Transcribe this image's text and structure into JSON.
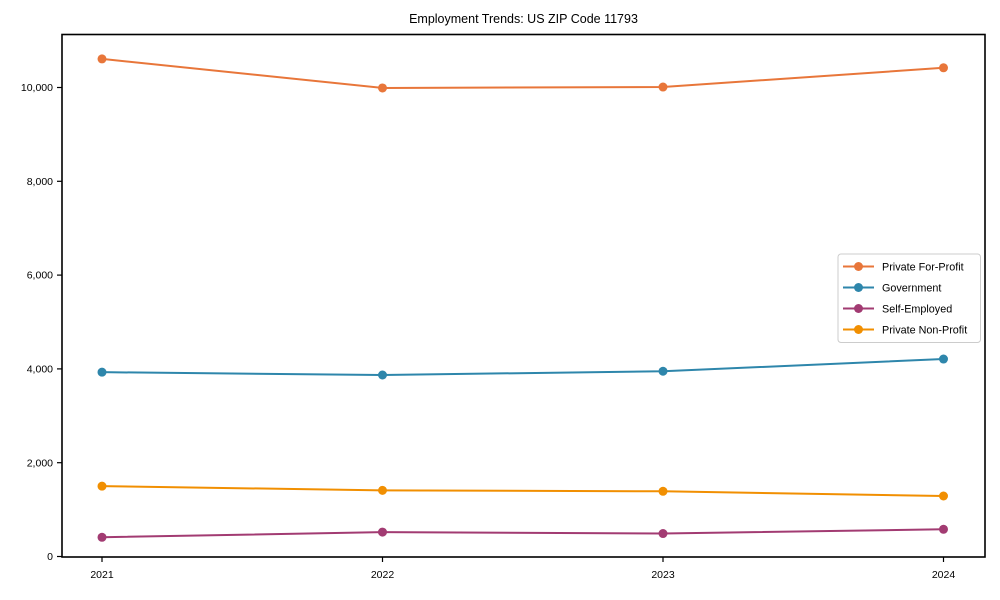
{
  "figure": {
    "background_color": "#ffffff",
    "frame_color": "#000000"
  },
  "chart_data": {
    "type": "line",
    "title": "Employment Trends: US ZIP Code 11793",
    "xlabel": "",
    "ylabel": "",
    "categories": [
      "2021",
      "2022",
      "2023",
      "2024"
    ],
    "series": [
      {
        "name": "Private For-Profit",
        "color": "#E8763A",
        "values": [
          10610,
          9990,
          10010,
          10420
        ]
      },
      {
        "name": "Government",
        "color": "#2E86AB",
        "values": [
          3930,
          3870,
          3950,
          4210
        ]
      },
      {
        "name": "Self-Employed",
        "color": "#A23B72",
        "values": [
          410,
          520,
          490,
          580
        ]
      },
      {
        "name": "Private Non-Profit",
        "color": "#F18F01",
        "values": [
          1500,
          1410,
          1390,
          1290
        ]
      }
    ],
    "ylim": [
      0,
      11140
    ],
    "yticks": {
      "values": [
        0,
        2000,
        4000,
        6000,
        8000,
        10000
      ],
      "labels": [
        "0",
        "2,000",
        "4,000",
        "6,000",
        "8,000",
        "10,000"
      ]
    },
    "grid": false,
    "marker": "circle",
    "legend_position": "center-right"
  }
}
